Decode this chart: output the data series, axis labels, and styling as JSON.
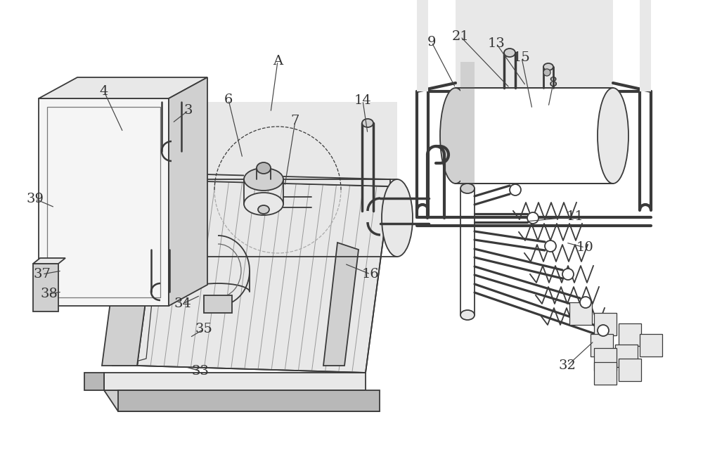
{
  "bg_color": "#ffffff",
  "lc": "#3a3a3a",
  "lc_light": "#888888",
  "fill_white": "#ffffff",
  "fill_light": "#e8e8e8",
  "fill_mid": "#d0d0d0",
  "fill_dark": "#b8b8b8",
  "fill_vdark": "#909090",
  "labels": [
    [
      "4",
      148,
      130
    ],
    [
      "3",
      268,
      157
    ],
    [
      "6",
      325,
      142
    ],
    [
      "A",
      395,
      87
    ],
    [
      "7",
      420,
      172
    ],
    [
      "14",
      516,
      143
    ],
    [
      "9",
      614,
      60
    ],
    [
      "21",
      655,
      52
    ],
    [
      "13",
      706,
      62
    ],
    [
      "15",
      742,
      82
    ],
    [
      "8",
      787,
      118
    ],
    [
      "39",
      50,
      283
    ],
    [
      "37",
      60,
      390
    ],
    [
      "38",
      70,
      418
    ],
    [
      "34",
      260,
      432
    ],
    [
      "35",
      290,
      468
    ],
    [
      "33",
      285,
      528
    ],
    [
      "16",
      527,
      390
    ],
    [
      "11",
      818,
      308
    ],
    [
      "10",
      832,
      352
    ],
    [
      "32",
      807,
      520
    ]
  ]
}
